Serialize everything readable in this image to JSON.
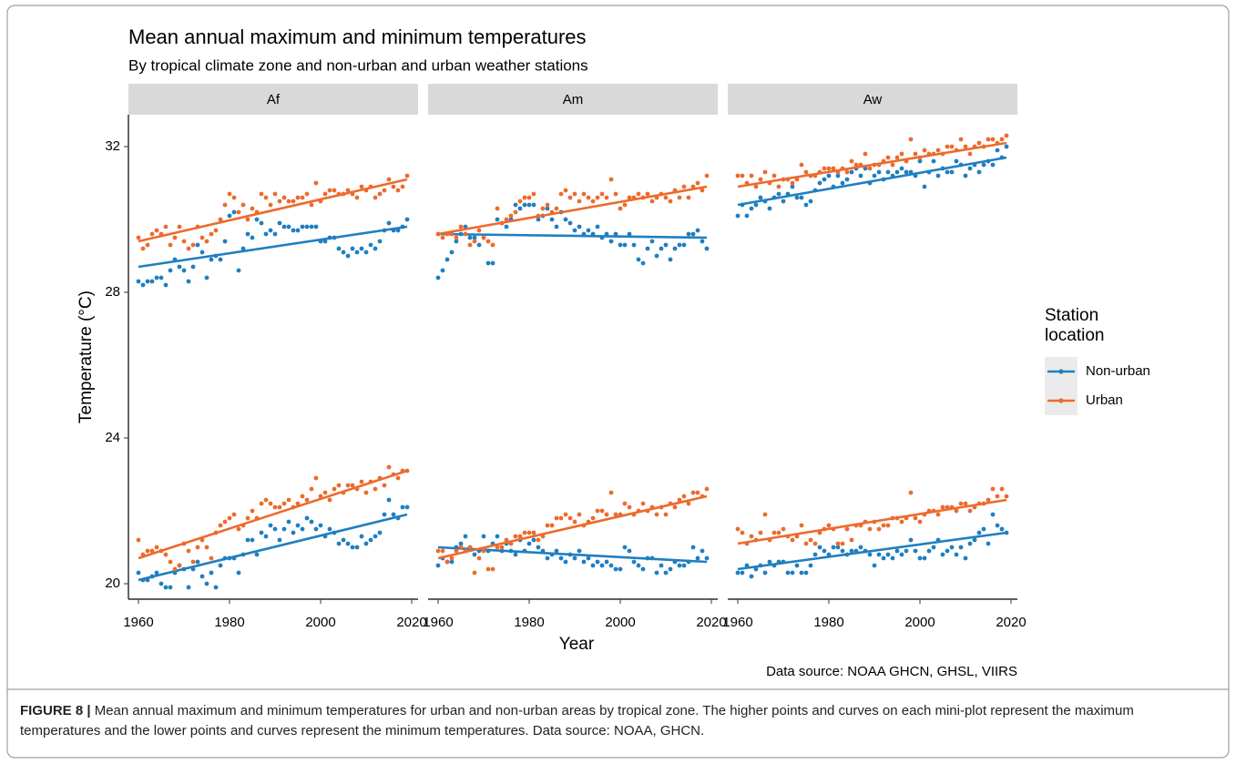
{
  "title": "Mean annual maximum and minimum temperatures",
  "subtitle": "By tropical climate zone and non-urban and urban weather stations",
  "xlabel": "Year",
  "ylabel": "Temperature (°C)",
  "legend_title": "Station location",
  "source": "Data source: NOAA GHCN, GHSL, VIIRS",
  "caption_label": "FIGURE 8 |",
  "caption": "Mean annual maximum and minimum temperatures for urban and non-urban areas by tropical zone. The higher points and curves on each mini-plot represent the maximum temperatures and the lower points and curves represent the minimum temperatures. Data source: NOAA, GHCN.",
  "chart_data": [
    {
      "type": "scatter",
      "facet": "Af",
      "x": [
        1960,
        1961,
        1962,
        1963,
        1964,
        1965,
        1966,
        1967,
        1968,
        1969,
        1970,
        1971,
        1972,
        1973,
        1974,
        1975,
        1976,
        1977,
        1978,
        1979,
        1980,
        1981,
        1982,
        1983,
        1984,
        1985,
        1986,
        1987,
        1988,
        1989,
        1990,
        1991,
        1992,
        1993,
        1994,
        1995,
        1996,
        1997,
        1998,
        1999,
        2000,
        2001,
        2002,
        2003,
        2004,
        2005,
        2006,
        2007,
        2008,
        2009,
        2010,
        2011,
        2012,
        2013,
        2014,
        2015,
        2016,
        2017,
        2018,
        2019
      ],
      "trend_x": [
        1960,
        2019
      ],
      "xlim": [
        1957.8,
        2021.4
      ],
      "xticks": [
        1960,
        1980,
        2000,
        2020
      ],
      "ylim": [
        19.575,
        32.875
      ],
      "yticks": [
        20,
        24,
        28,
        32
      ],
      "series": [
        {
          "name": "Non-urban",
          "color": "#1f7fc0",
          "trend": [
            28.7,
            29.8
          ],
          "values": [
            28.3,
            28.2,
            28.3,
            28.3,
            28.4,
            28.4,
            28.2,
            28.6,
            28.9,
            28.7,
            28.6,
            28.3,
            28.7,
            29.3,
            29.1,
            28.4,
            28.9,
            29.0,
            28.9,
            29.4,
            30.1,
            30.2,
            28.6,
            29.2,
            29.6,
            29.5,
            30.0,
            29.9,
            29.6,
            29.7,
            29.6,
            29.9,
            29.8,
            29.8,
            29.7,
            29.7,
            29.8,
            29.8,
            29.8,
            29.8,
            29.4,
            29.4,
            29.5,
            29.5,
            29.2,
            29.1,
            29.0,
            29.2,
            29.1,
            29.2,
            29.1,
            29.3,
            29.2,
            29.4,
            29.7,
            29.9,
            29.7,
            29.7,
            29.8,
            30.0
          ]
        },
        {
          "name": "Urban",
          "color": "#ec6b2d",
          "trend": [
            29.4,
            31.1
          ],
          "values": [
            29.5,
            29.2,
            29.3,
            29.6,
            29.7,
            29.6,
            29.8,
            29.3,
            29.5,
            29.8,
            29.4,
            29.2,
            29.3,
            29.8,
            29.5,
            29.4,
            29.6,
            29.7,
            30.0,
            30.4,
            30.7,
            30.6,
            30.2,
            30.4,
            30.0,
            30.3,
            30.2,
            30.7,
            30.6,
            30.4,
            30.7,
            30.5,
            30.6,
            30.5,
            30.5,
            30.6,
            30.6,
            30.7,
            30.4,
            31.0,
            30.5,
            30.7,
            30.8,
            30.8,
            30.7,
            30.7,
            30.8,
            30.7,
            30.6,
            30.9,
            30.8,
            30.9,
            30.6,
            30.7,
            30.8,
            31.1,
            30.9,
            30.8,
            30.9,
            31.2
          ]
        },
        {
          "name": "Non-urban",
          "color": "#1f7fc0",
          "trend": [
            20.1,
            21.9
          ],
          "values": [
            20.3,
            20.1,
            20.1,
            20.2,
            20.3,
            20.0,
            19.9,
            19.9,
            20.3,
            20.5,
            20.4,
            19.9,
            20.4,
            20.6,
            20.2,
            20.0,
            20.3,
            19.9,
            20.5,
            20.7,
            20.7,
            20.7,
            20.3,
            20.8,
            21.2,
            21.2,
            20.8,
            21.4,
            21.3,
            21.6,
            21.5,
            21.2,
            21.5,
            21.7,
            21.4,
            21.6,
            21.5,
            21.8,
            21.7,
            21.5,
            21.6,
            21.3,
            21.5,
            21.4,
            21.1,
            21.2,
            21.1,
            21.0,
            21.0,
            21.3,
            21.1,
            21.2,
            21.3,
            21.4,
            21.9,
            22.3,
            21.9,
            21.8,
            22.1,
            22.1
          ]
        },
        {
          "name": "Urban",
          "color": "#ec6b2d",
          "trend": [
            20.7,
            23.1
          ],
          "values": [
            21.2,
            20.8,
            20.9,
            20.9,
            21.0,
            20.9,
            20.8,
            20.6,
            20.4,
            20.5,
            21.1,
            20.9,
            20.6,
            21.0,
            21.2,
            21.0,
            20.7,
            21.4,
            21.6,
            21.7,
            21.8,
            21.9,
            21.5,
            21.6,
            21.8,
            22.0,
            21.8,
            22.2,
            22.3,
            22.2,
            22.1,
            22.1,
            22.2,
            22.3,
            22.1,
            22.2,
            22.4,
            22.3,
            22.6,
            22.9,
            22.4,
            22.5,
            22.3,
            22.6,
            22.7,
            22.5,
            22.7,
            22.7,
            22.6,
            22.8,
            22.5,
            22.8,
            22.6,
            22.9,
            22.7,
            23.2,
            23.0,
            22.9,
            23.1,
            23.1
          ]
        }
      ]
    },
    {
      "type": "scatter",
      "facet": "Am",
      "x": [
        1960,
        1961,
        1962,
        1963,
        1964,
        1965,
        1966,
        1967,
        1968,
        1969,
        1970,
        1971,
        1972,
        1973,
        1974,
        1975,
        1976,
        1977,
        1978,
        1979,
        1980,
        1981,
        1982,
        1983,
        1984,
        1985,
        1986,
        1987,
        1988,
        1989,
        1990,
        1991,
        1992,
        1993,
        1994,
        1995,
        1996,
        1997,
        1998,
        1999,
        2000,
        2001,
        2002,
        2003,
        2004,
        2005,
        2006,
        2007,
        2008,
        2009,
        2010,
        2011,
        2012,
        2013,
        2014,
        2015,
        2016,
        2017,
        2018,
        2019
      ],
      "trend_x": [
        1960,
        2019
      ],
      "xlim": [
        1957.8,
        2021.4
      ],
      "xticks": [
        1960,
        1980,
        2000,
        2020
      ],
      "ylim": [
        19.575,
        32.875
      ],
      "yticks": [
        20,
        24,
        28,
        32
      ],
      "series": [
        {
          "name": "Non-urban",
          "color": "#1f7fc0",
          "trend": [
            29.6,
            29.5
          ],
          "values": [
            28.4,
            28.6,
            28.9,
            29.1,
            29.4,
            29.6,
            29.8,
            29.5,
            29.5,
            29.3,
            29.5,
            28.8,
            28.8,
            30.0,
            29.9,
            29.8,
            30.0,
            30.4,
            30.3,
            30.4,
            30.4,
            30.4,
            30.0,
            30.1,
            30.3,
            30.0,
            29.8,
            30.2,
            30.0,
            29.9,
            29.7,
            29.8,
            29.6,
            29.7,
            29.6,
            29.8,
            29.5,
            29.6,
            29.4,
            29.6,
            29.3,
            29.3,
            29.6,
            29.3,
            28.9,
            28.8,
            29.2,
            29.4,
            29.0,
            29.2,
            29.3,
            28.9,
            29.2,
            29.3,
            29.3,
            29.6,
            29.6,
            29.7,
            29.4,
            29.2
          ]
        },
        {
          "name": "Urban",
          "color": "#ec6b2d",
          "trend": [
            29.6,
            30.9
          ],
          "values": [
            29.6,
            29.5,
            29.6,
            29.6,
            29.5,
            29.8,
            29.6,
            29.3,
            29.4,
            29.7,
            29.5,
            29.4,
            29.3,
            30.3,
            29.9,
            30.0,
            30.1,
            30.2,
            30.5,
            30.6,
            30.6,
            30.7,
            30.1,
            30.3,
            30.4,
            30.2,
            30.3,
            30.7,
            30.8,
            30.6,
            30.7,
            30.5,
            30.7,
            30.6,
            30.5,
            30.6,
            30.7,
            30.6,
            31.1,
            30.7,
            30.3,
            30.4,
            30.6,
            30.6,
            30.7,
            30.6,
            30.7,
            30.5,
            30.6,
            30.7,
            30.6,
            30.5,
            30.8,
            30.6,
            30.9,
            30.6,
            30.9,
            31.0,
            30.8,
            31.2
          ]
        },
        {
          "name": "Non-urban",
          "color": "#1f7fc0",
          "trend": [
            21.0,
            20.6
          ],
          "values": [
            20.5,
            20.7,
            20.6,
            20.6,
            21.0,
            21.1,
            21.3,
            21.0,
            20.8,
            20.9,
            21.3,
            20.9,
            21.1,
            21.3,
            20.9,
            21.1,
            20.9,
            20.8,
            21.2,
            20.9,
            21.1,
            21.2,
            21.0,
            20.9,
            20.7,
            20.8,
            20.9,
            20.7,
            20.6,
            20.8,
            20.7,
            20.9,
            20.6,
            20.7,
            20.5,
            20.6,
            20.5,
            20.6,
            20.5,
            20.4,
            20.4,
            21.0,
            20.9,
            20.6,
            20.5,
            20.4,
            20.7,
            20.7,
            20.3,
            20.5,
            20.3,
            20.4,
            20.6,
            20.5,
            20.5,
            20.6,
            21.0,
            20.7,
            20.9,
            20.7
          ]
        },
        {
          "name": "Urban",
          "color": "#ec6b2d",
          "trend": [
            20.7,
            22.4
          ],
          "values": [
            20.9,
            20.9,
            20.6,
            20.7,
            20.9,
            21.0,
            20.9,
            21.0,
            20.3,
            20.7,
            20.9,
            20.4,
            20.4,
            21.0,
            21.0,
            21.2,
            21.1,
            21.3,
            21.3,
            21.4,
            21.4,
            21.4,
            21.2,
            21.3,
            21.6,
            21.6,
            21.8,
            21.8,
            21.9,
            21.8,
            21.7,
            21.9,
            21.6,
            21.7,
            21.8,
            22.0,
            22.0,
            21.9,
            22.5,
            21.9,
            21.9,
            22.2,
            22.1,
            21.9,
            22.0,
            22.2,
            22.0,
            22.1,
            21.9,
            22.1,
            21.9,
            22.2,
            22.1,
            22.3,
            22.4,
            22.2,
            22.5,
            22.5,
            22.4,
            22.6
          ]
        }
      ]
    },
    {
      "type": "scatter",
      "facet": "Aw",
      "x": [
        1960,
        1961,
        1962,
        1963,
        1964,
        1965,
        1966,
        1967,
        1968,
        1969,
        1970,
        1971,
        1972,
        1973,
        1974,
        1975,
        1976,
        1977,
        1978,
        1979,
        1980,
        1981,
        1982,
        1983,
        1984,
        1985,
        1986,
        1987,
        1988,
        1989,
        1990,
        1991,
        1992,
        1993,
        1994,
        1995,
        1996,
        1997,
        1998,
        1999,
        2000,
        2001,
        2002,
        2003,
        2004,
        2005,
        2006,
        2007,
        2008,
        2009,
        2010,
        2011,
        2012,
        2013,
        2014,
        2015,
        2016,
        2017,
        2018,
        2019
      ],
      "trend_x": [
        1960,
        2019
      ],
      "xlim": [
        1957.8,
        2021.4
      ],
      "xticks": [
        1960,
        1980,
        2000,
        2020
      ],
      "ylim": [
        19.575,
        32.875
      ],
      "yticks": [
        20,
        24,
        28,
        32
      ],
      "series": [
        {
          "name": "Non-urban",
          "color": "#1f7fc0",
          "trend": [
            30.4,
            31.7
          ],
          "values": [
            30.1,
            30.4,
            30.1,
            30.3,
            30.4,
            30.6,
            30.5,
            30.3,
            30.6,
            30.7,
            30.5,
            30.7,
            30.9,
            30.6,
            30.6,
            30.4,
            30.5,
            30.8,
            31.0,
            31.1,
            31.2,
            30.9,
            31.2,
            31.0,
            31.1,
            31.3,
            31.4,
            31.2,
            31.4,
            31.0,
            31.2,
            31.3,
            31.1,
            31.3,
            31.2,
            31.3,
            31.4,
            31.3,
            31.3,
            31.2,
            31.6,
            30.9,
            31.3,
            31.6,
            31.2,
            31.4,
            31.3,
            31.3,
            31.6,
            31.5,
            31.2,
            31.4,
            31.5,
            31.3,
            31.5,
            31.6,
            31.5,
            31.9,
            31.7,
            32.0
          ]
        },
        {
          "name": "Urban",
          "color": "#ec6b2d",
          "trend": [
            30.9,
            32.1
          ],
          "values": [
            31.2,
            31.2,
            31.0,
            31.2,
            30.9,
            31.1,
            31.3,
            31.0,
            31.2,
            30.9,
            31.1,
            31.1,
            31.0,
            31.1,
            31.5,
            31.3,
            31.2,
            31.2,
            31.3,
            31.4,
            31.4,
            31.4,
            31.3,
            31.4,
            31.3,
            31.6,
            31.5,
            31.5,
            31.8,
            31.4,
            31.5,
            31.5,
            31.6,
            31.7,
            31.5,
            31.7,
            31.8,
            31.6,
            32.2,
            31.8,
            31.7,
            31.9,
            31.8,
            31.8,
            31.9,
            31.8,
            32.0,
            32.0,
            31.9,
            32.2,
            32.0,
            31.8,
            32.0,
            32.1,
            32.0,
            32.2,
            32.2,
            32.1,
            32.2,
            32.3
          ]
        },
        {
          "name": "Non-urban",
          "color": "#1f7fc0",
          "trend": [
            20.4,
            21.4
          ],
          "values": [
            20.3,
            20.3,
            20.5,
            20.2,
            20.4,
            20.5,
            20.3,
            20.6,
            20.5,
            20.6,
            20.6,
            20.3,
            20.3,
            20.5,
            20.3,
            20.3,
            20.5,
            20.8,
            21.0,
            20.9,
            20.8,
            21.0,
            21.0,
            20.9,
            20.8,
            20.9,
            20.9,
            21.0,
            20.9,
            20.8,
            20.5,
            20.8,
            20.7,
            20.8,
            20.7,
            20.9,
            20.8,
            20.9,
            21.2,
            20.9,
            20.7,
            20.7,
            20.9,
            21.0,
            21.2,
            20.8,
            20.9,
            21.0,
            20.8,
            21.0,
            20.7,
            21.1,
            21.2,
            21.4,
            21.5,
            21.1,
            21.9,
            21.6,
            21.5,
            21.4
          ]
        },
        {
          "name": "Urban",
          "color": "#ec6b2d",
          "trend": [
            21.1,
            22.3
          ],
          "values": [
            21.5,
            21.4,
            21.1,
            21.3,
            21.2,
            21.4,
            21.9,
            21.2,
            21.4,
            21.4,
            21.5,
            21.3,
            21.2,
            21.3,
            21.6,
            21.1,
            21.2,
            21.1,
            21.4,
            21.5,
            21.6,
            21.5,
            21.1,
            21.1,
            21.5,
            21.2,
            21.6,
            21.6,
            21.7,
            21.5,
            21.7,
            21.5,
            21.6,
            21.6,
            21.8,
            21.8,
            21.7,
            21.8,
            22.5,
            21.8,
            21.7,
            21.9,
            22.0,
            22.0,
            21.9,
            22.1,
            22.1,
            22.1,
            22.0,
            22.2,
            22.2,
            22.0,
            22.1,
            22.2,
            22.2,
            22.3,
            22.6,
            22.4,
            22.6,
            22.4
          ]
        }
      ]
    }
  ]
}
